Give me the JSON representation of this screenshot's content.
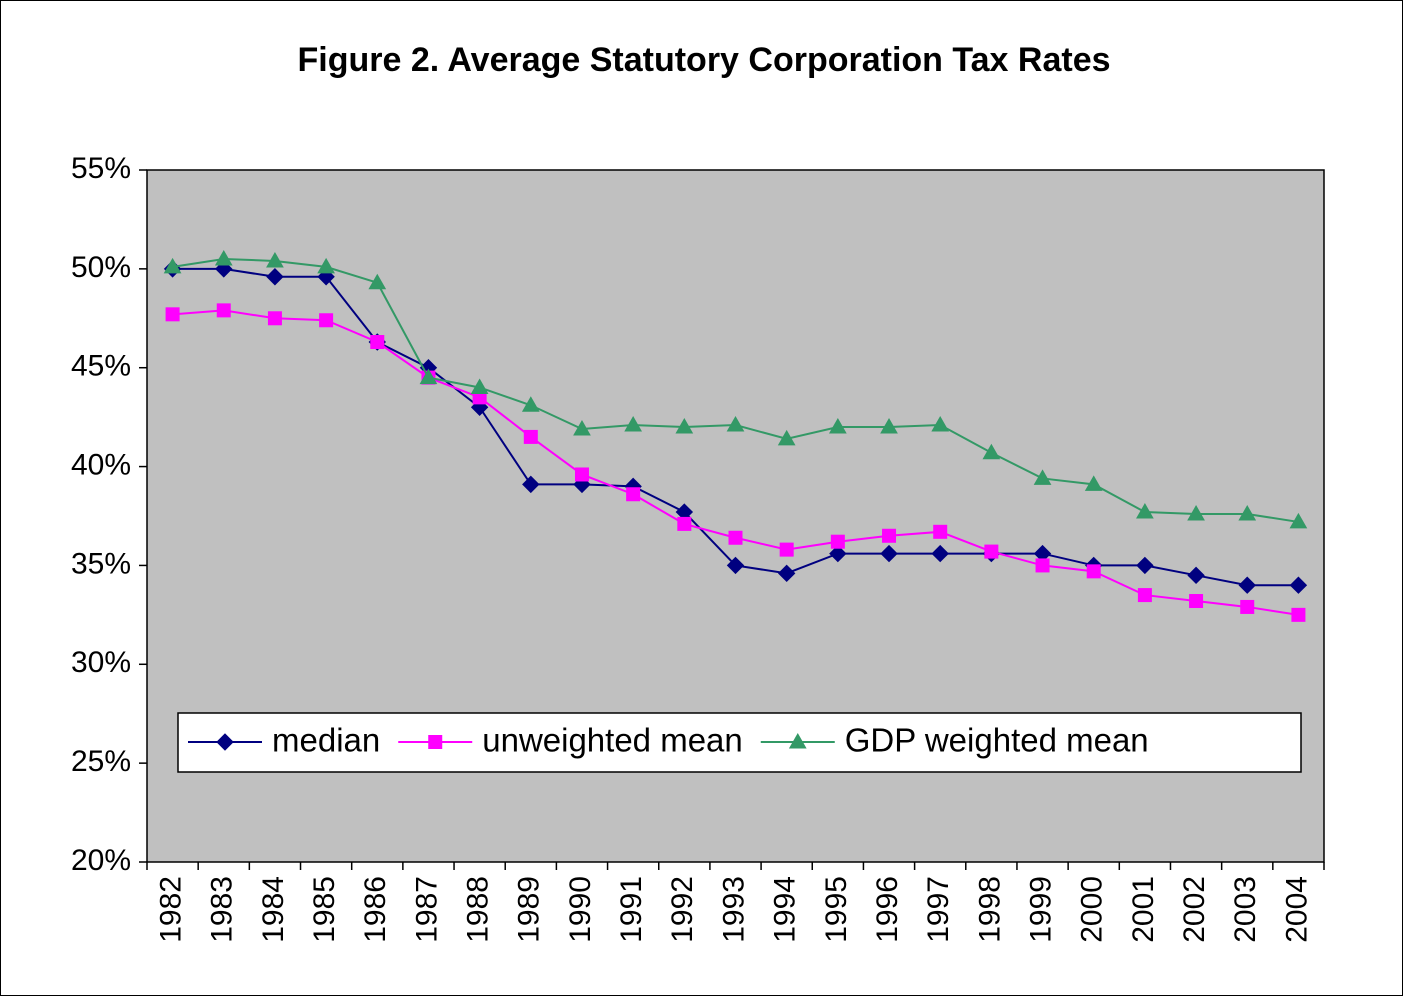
{
  "chart_data": {
    "type": "line",
    "title": "Figure 2. Average Statutory Corporation Tax Rates",
    "categories": [
      "1982",
      "1983",
      "1984",
      "1985",
      "1986",
      "1987",
      "1988",
      "1989",
      "1990",
      "1991",
      "1992",
      "1993",
      "1994",
      "1995",
      "1996",
      "1997",
      "1998",
      "1999",
      "2000",
      "2001",
      "2002",
      "2003",
      "2004"
    ],
    "series": [
      {
        "name": "median",
        "color": "#000080",
        "marker": "diamond",
        "values": [
          50.0,
          50.0,
          49.6,
          49.6,
          46.3,
          45.0,
          43.0,
          39.1,
          39.1,
          39.0,
          37.7,
          35.0,
          34.6,
          35.6,
          35.6,
          35.6,
          35.6,
          35.6,
          35.0,
          35.0,
          34.5,
          34.0,
          34.0
        ]
      },
      {
        "name": "unweighted mean",
        "color": "#ff00ff",
        "marker": "square",
        "values": [
          47.7,
          47.9,
          47.5,
          47.4,
          46.3,
          44.5,
          43.5,
          41.5,
          39.6,
          38.6,
          37.1,
          36.4,
          35.8,
          36.2,
          36.5,
          36.7,
          35.7,
          35.0,
          34.7,
          33.5,
          33.2,
          32.9,
          32.5
        ]
      },
      {
        "name": "GDP weighted mean",
        "color": "#339966",
        "marker": "triangle",
        "values": [
          50.1,
          50.5,
          50.4,
          50.1,
          49.3,
          44.5,
          44.0,
          43.1,
          41.9,
          42.1,
          42.0,
          42.1,
          41.4,
          42.0,
          42.0,
          42.1,
          40.7,
          39.4,
          39.1,
          37.7,
          37.6,
          37.6,
          37.2
        ]
      }
    ],
    "ylim": [
      20,
      55
    ],
    "yticks": [
      {
        "value": 20,
        "label": "20%"
      },
      {
        "value": 25,
        "label": "25%"
      },
      {
        "value": 30,
        "label": "30%"
      },
      {
        "value": 35,
        "label": "35%"
      },
      {
        "value": 40,
        "label": "40%"
      },
      {
        "value": 45,
        "label": "45%"
      },
      {
        "value": 50,
        "label": "50%"
      },
      {
        "value": 55,
        "label": "55%"
      }
    ],
    "legend": "bottom",
    "plot_background": "#c0c0c0"
  }
}
